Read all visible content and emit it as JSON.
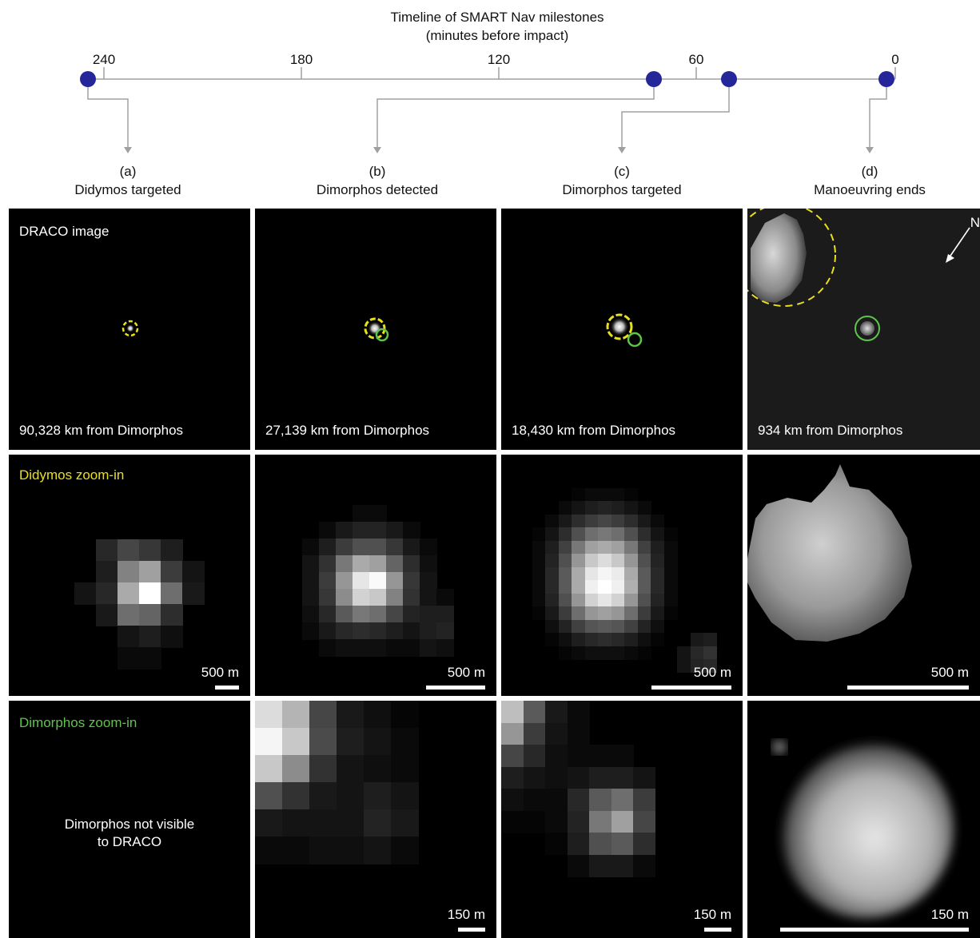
{
  "timeline": {
    "title_line1": "Timeline of SMART Nav milestones",
    "title_line2": "(minutes before impact)",
    "ticks": [
      "240",
      "180",
      "120",
      "60",
      "0"
    ],
    "milestones": [
      {
        "id": "a",
        "letter": "(a)",
        "label": "Didymos targeted",
        "minutes": 242
      },
      {
        "id": "b",
        "letter": "(b)",
        "label": "Dimorphos detected",
        "minutes": 73
      },
      {
        "id": "c",
        "letter": "(c)",
        "label": "Dimorphos targeted",
        "minutes": 50
      },
      {
        "id": "d",
        "letter": "(d)",
        "label": "Manoeuvring ends",
        "minutes": 2
      }
    ],
    "colors": {
      "dot": "#25269a",
      "line": "#a0a0a0"
    }
  },
  "row_labels": {
    "draco": "DRACO image",
    "didymos_zoom": "Didymos zoom-in",
    "dimorphos_zoom": "Dimorphos zoom-in"
  },
  "distances": [
    "90,328 km from Dimorphos",
    "27,139 km from Dimorphos",
    "18,430 km from Dimorphos",
    "934 km from Dimorphos"
  ],
  "didymos_scales": [
    "500 m",
    "500 m",
    "500 m",
    "500 m"
  ],
  "dimorphos_scales": [
    "150 m",
    "150 m",
    "150 m",
    "150 m"
  ],
  "not_visible_line1": "Dimorphos not visible",
  "not_visible_line2": "to DRACO",
  "north_label": "N",
  "colors": {
    "yellow": "#e8e01c",
    "green": "#5ec44a",
    "white": "#ffffff"
  }
}
